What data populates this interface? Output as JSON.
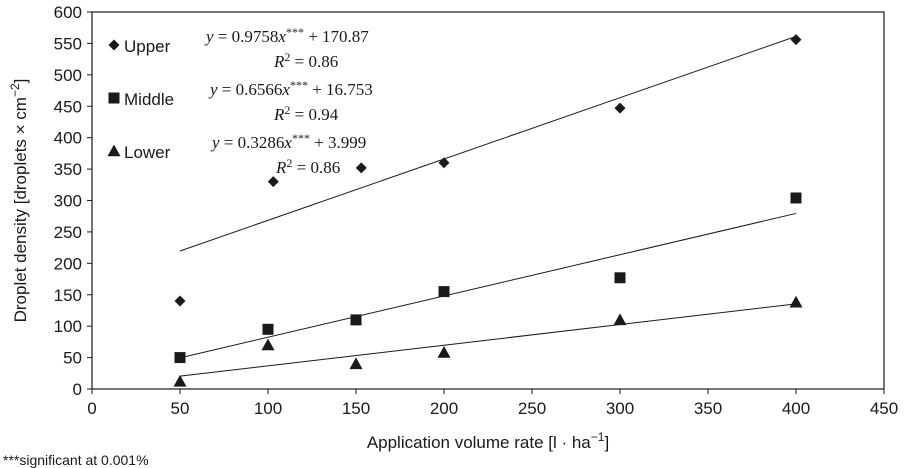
{
  "chart_data": {
    "type": "scatter",
    "xlabel": "Application volume rate [l · ha",
    "xlabel_sup": "−1",
    "xlabel_end": "]",
    "ylabel": "Droplet density [droplets × cm",
    "ylabel_sup": "−2",
    "ylabel_end": "]",
    "xlim": [
      0,
      450
    ],
    "ylim": [
      0,
      600
    ],
    "x_ticks": [
      0,
      50,
      100,
      150,
      200,
      250,
      300,
      350,
      400,
      450
    ],
    "y_ticks": [
      0,
      50,
      100,
      150,
      200,
      250,
      300,
      350,
      400,
      450,
      500,
      550,
      600
    ],
    "grid": false,
    "legend_placement": "top-left",
    "series": [
      {
        "name": "Upper",
        "marker": "diamond",
        "points": [
          [
            50,
            140
          ],
          [
            103,
            330
          ],
          [
            153,
            352
          ],
          [
            200,
            360
          ],
          [
            300,
            447
          ],
          [
            400,
            556
          ]
        ],
        "trend": {
          "slope": 0.9758,
          "intercept": 170.87,
          "x_range": [
            50,
            400
          ]
        },
        "equation": {
          "prefix": "y",
          "eq": " = 0.9758",
          "var": "x",
          "stars": "***",
          "rest": " + 170.87"
        },
        "r2": {
          "label": "R",
          "sup": "2",
          "value": " = 0.86"
        }
      },
      {
        "name": "Middle",
        "marker": "square",
        "points": [
          [
            50,
            50
          ],
          [
            100,
            95
          ],
          [
            150,
            110
          ],
          [
            200,
            155
          ],
          [
            300,
            177
          ],
          [
            400,
            304
          ]
        ],
        "trend": {
          "slope": 0.6566,
          "intercept": 16.753,
          "x_range": [
            50,
            400
          ]
        },
        "equation": {
          "prefix": "y",
          "eq": " = 0.6566",
          "var": "x",
          "stars": "***",
          "rest": " + 16.753"
        },
        "r2": {
          "label": "R",
          "sup": "2",
          "value": " = 0.94"
        }
      },
      {
        "name": "Lower",
        "marker": "triangle",
        "points": [
          [
            50,
            12
          ],
          [
            100,
            70
          ],
          [
            150,
            40
          ],
          [
            200,
            58
          ],
          [
            300,
            110
          ],
          [
            400,
            138
          ]
        ],
        "trend": {
          "slope": 0.3286,
          "intercept": 3.999,
          "x_range": [
            50,
            400
          ]
        },
        "equation": {
          "prefix": "y",
          "eq": " = 0.3286",
          "var": "x",
          "stars": "***",
          "rest": " + 3.999"
        },
        "r2": {
          "label": "R",
          "sup": "2",
          "value": " = 0.86"
        }
      }
    ],
    "footnote": "***significant at 0.001%"
  }
}
